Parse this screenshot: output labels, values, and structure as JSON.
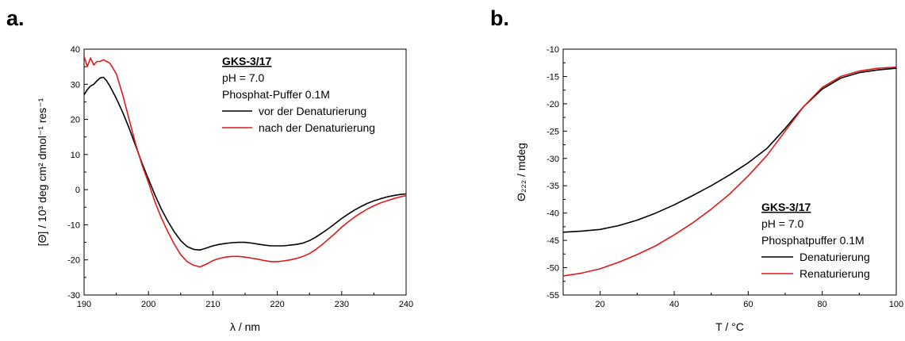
{
  "panel_a": {
    "letter": "a."
  },
  "panel_b": {
    "letter": "b."
  },
  "chart_data": [
    {
      "type": "line",
      "xlabel": "λ / nm",
      "ylabel": "[Θ] / 10³ deg cm² dmol⁻¹ res⁻¹",
      "xlim": [
        190,
        240
      ],
      "ylim": [
        -30,
        40
      ],
      "xticks": [
        190,
        200,
        210,
        220,
        230,
        240
      ],
      "yticks": [
        -30,
        -20,
        -10,
        0,
        10,
        20,
        30,
        40
      ],
      "legend": {
        "title": "GKS-3/17",
        "lines": [
          "pH = 7.0",
          "Phosphat-Puffer 0.1M"
        ],
        "placement": "top-right"
      },
      "series": [
        {
          "name": "vor der Denaturierung",
          "color": "#000000",
          "x": [
            190,
            190.5,
            191,
            191.5,
            192,
            192.5,
            193,
            193.5,
            194,
            195,
            196,
            197,
            198,
            199,
            200,
            201,
            202,
            203,
            204,
            205,
            206,
            207,
            208,
            209,
            210,
            211,
            212,
            213,
            214,
            215,
            216,
            217,
            218,
            219,
            220,
            221,
            222,
            223,
            224,
            225,
            226,
            227,
            228,
            229,
            230,
            231,
            232,
            233,
            234,
            235,
            236,
            237,
            238,
            239,
            240
          ],
          "y": [
            27,
            28.5,
            29.5,
            30,
            31,
            31.8,
            32,
            31,
            29.5,
            26,
            22,
            17.5,
            12.5,
            7.5,
            3,
            -1.5,
            -5.5,
            -9,
            -12,
            -14.5,
            -16.2,
            -17,
            -17.2,
            -16.6,
            -16,
            -15.6,
            -15.3,
            -15.1,
            -15,
            -15,
            -15.2,
            -15.5,
            -15.8,
            -16,
            -16,
            -16,
            -15.8,
            -15.6,
            -15.2,
            -14.5,
            -13.5,
            -12.3,
            -11,
            -9.6,
            -8.2,
            -7,
            -5.8,
            -4.8,
            -3.9,
            -3.2,
            -2.6,
            -2.1,
            -1.7,
            -1.4,
            -1.2
          ]
        },
        {
          "name": "nach der Denaturierung",
          "color": "#e0191b",
          "x": [
            190,
            190.5,
            191,
            191.5,
            192,
            192.5,
            193,
            193.5,
            194,
            195,
            196,
            197,
            198,
            199,
            200,
            201,
            202,
            203,
            204,
            205,
            206,
            207,
            208,
            209,
            210,
            211,
            212,
            213,
            214,
            215,
            216,
            217,
            218,
            219,
            220,
            221,
            222,
            223,
            224,
            225,
            226,
            227,
            228,
            229,
            230,
            231,
            232,
            233,
            234,
            235,
            236,
            237,
            238,
            239,
            240
          ],
          "y": [
            38,
            35,
            37.5,
            35.5,
            36.5,
            36.5,
            37,
            36.5,
            36,
            33,
            27,
            20,
            13,
            7,
            2,
            -3.5,
            -8,
            -12,
            -15.5,
            -18.5,
            -20.5,
            -21.5,
            -22,
            -21.2,
            -20.2,
            -19.6,
            -19.2,
            -19,
            -19,
            -19.2,
            -19.5,
            -19.8,
            -20.2,
            -20.5,
            -20.5,
            -20.3,
            -20,
            -19.6,
            -19,
            -18.2,
            -17,
            -15.6,
            -14,
            -12.4,
            -10.7,
            -9.2,
            -7.8,
            -6.6,
            -5.5,
            -4.6,
            -3.8,
            -3.2,
            -2.6,
            -2.1,
            -1.7
          ]
        }
      ]
    },
    {
      "type": "line",
      "xlabel": "T / °C",
      "ylabel": "Θ₂₂₂ / mdeg",
      "xlim": [
        10,
        100
      ],
      "ylim": [
        -55,
        -10
      ],
      "xticks": [
        20,
        40,
        60,
        80,
        100
      ],
      "yticks": [
        -55,
        -50,
        -45,
        -40,
        -35,
        -30,
        -25,
        -20,
        -15,
        -10
      ],
      "legend": {
        "title": "GKS-3/17",
        "lines": [
          "pH = 7.0",
          "Phosphatpuffer 0.1M"
        ],
        "placement": "bottom-right"
      },
      "series": [
        {
          "name": "Denaturierung",
          "color": "#000000",
          "x": [
            10,
            15,
            20,
            25,
            30,
            35,
            40,
            45,
            50,
            55,
            60,
            65,
            70,
            75,
            80,
            85,
            90,
            95,
            100
          ],
          "y": [
            -43.5,
            -43.3,
            -43,
            -42.3,
            -41.3,
            -40,
            -38.5,
            -36.8,
            -35,
            -33,
            -30.8,
            -28.2,
            -24.5,
            -20.5,
            -17.3,
            -15.3,
            -14.3,
            -13.8,
            -13.5
          ]
        },
        {
          "name": "Renaturierung",
          "color": "#e0191b",
          "x": [
            10,
            15,
            20,
            25,
            30,
            35,
            40,
            45,
            50,
            55,
            60,
            65,
            70,
            75,
            80,
            85,
            90,
            95,
            100
          ],
          "y": [
            -51.5,
            -51,
            -50.2,
            -49,
            -47.6,
            -46,
            -44,
            -41.8,
            -39.3,
            -36.5,
            -33.2,
            -29.5,
            -25,
            -20.5,
            -17,
            -15,
            -14,
            -13.5,
            -13.3
          ]
        }
      ]
    }
  ]
}
